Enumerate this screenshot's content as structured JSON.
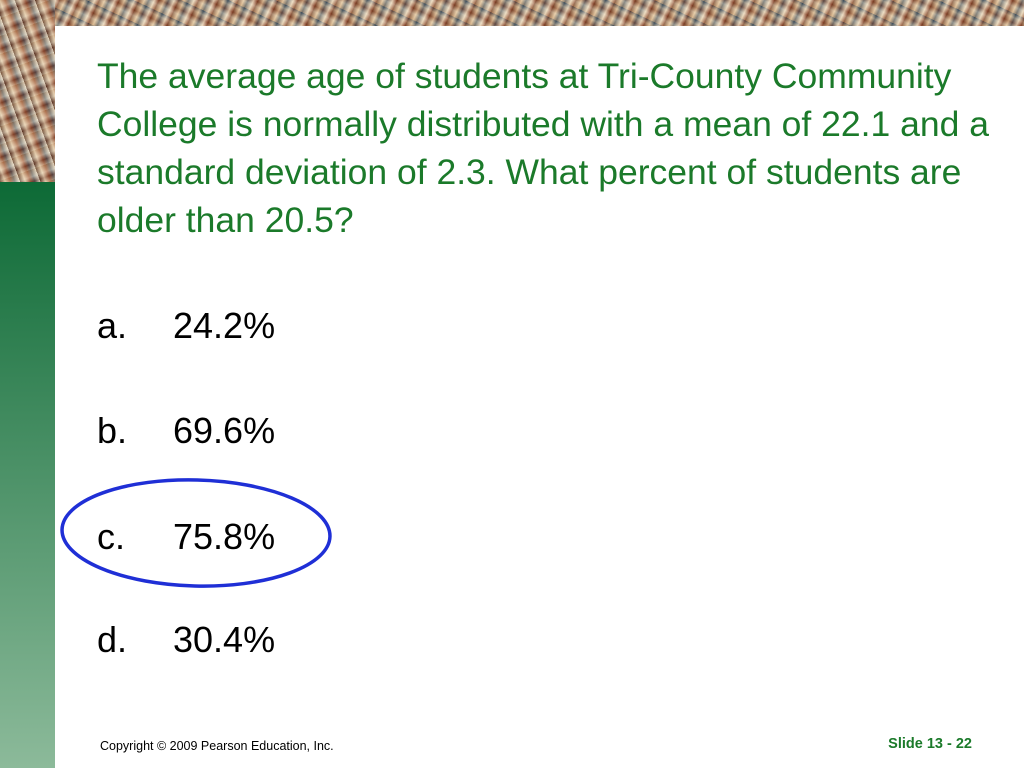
{
  "slide": {
    "question": "The average age of students at Tri-County Community College is normally distributed with a mean of 22.1 and a standard deviation of 2.3. What percent of students are older than 20.5?",
    "options": [
      {
        "letter": "a.",
        "value": "24.2%"
      },
      {
        "letter": "b.",
        "value": "69.6%"
      },
      {
        "letter": "c.",
        "value": "75.8%",
        "circled": true
      },
      {
        "letter": "d.",
        "value": "30.4%"
      }
    ],
    "copyright": "Copyright © 2009 Pearson Education, Inc.",
    "slide_number": "Slide 13 - 22"
  },
  "colors": {
    "question_text": "#1b7a2a",
    "answer_circle": "#1f2fd6",
    "side_bar_top": "#0d6a36",
    "side_bar_bottom": "#8cba9a"
  }
}
